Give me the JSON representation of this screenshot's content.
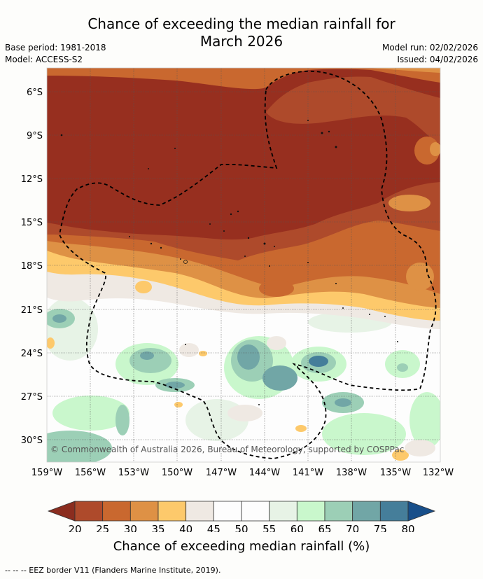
{
  "title_line1": "Chance of exceeding the median rainfall for",
  "title_line2": "March 2026",
  "base_period": "Base period: 1981-2018",
  "model": "Model: ACCESS-S2",
  "model_run": "Model run: 02/02/2026",
  "issued": "Issued: 04/02/2026",
  "copyright": "© Commonwealth of Australia 2026, Bureau of Meteorology, supported by COSPPac",
  "lat_labels": [
    "6°S",
    "9°S",
    "12°S",
    "15°S",
    "18°S",
    "21°S",
    "24°S",
    "27°S",
    "30°S"
  ],
  "lon_labels": [
    "159°W",
    "156°W",
    "153°W",
    "150°W",
    "147°W",
    "144°W",
    "141°W",
    "138°W",
    "135°W",
    "132°W"
  ],
  "colorbar": {
    "ticks": [
      "20",
      "25",
      "30",
      "35",
      "40",
      "45",
      "50",
      "55",
      "60",
      "65",
      "70",
      "75",
      "80"
    ],
    "colors": [
      "#ae4a2b",
      "#c9682f",
      "#de9145",
      "#fdc96b",
      "#efe9e3",
      "#fdfdfd",
      "#fdfdfd",
      "#e7f3e6",
      "#c9f7cc",
      "#9ccfb6",
      "#71a6a6",
      "#457e9a"
    ],
    "low_color": "#8b2d1f",
    "high_color": "#184f8a",
    "label": "Chance of exceeding median rainfall (%)"
  },
  "legend_footer": "--  --  -- EEZ border V11 (Flanders Marine Institute, 2019)."
}
